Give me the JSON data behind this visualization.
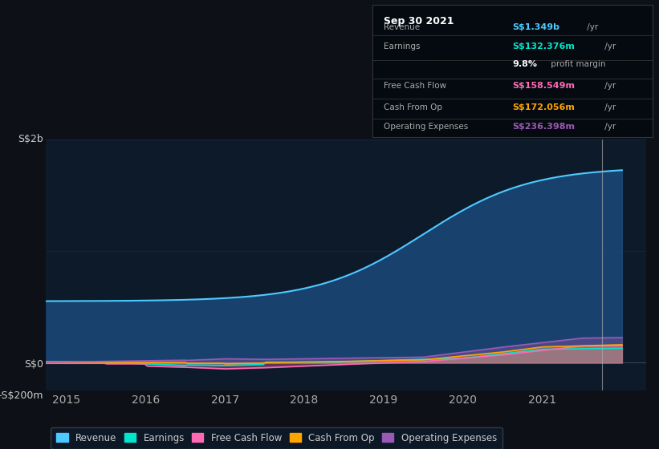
{
  "bg_color": "#0d1117",
  "plot_bg_color": "#0d1a2a",
  "grid_color": "#1e3a5f",
  "title": "Sep 30 2021",
  "ylabel_top": "S$2b",
  "ylabel_zero": "S$0",
  "ylabel_bottom": "-S$200m",
  "xlabel_ticks": [
    "2015",
    "2016",
    "2017",
    "2018",
    "2019",
    "2020",
    "2021"
  ],
  "vertical_line_x": 2021.75,
  "series": {
    "revenue": {
      "color": "#4ec9ff",
      "fill_color": "#1a4a7a",
      "label": "Revenue"
    },
    "earnings": {
      "color": "#00e5cc",
      "fill_color": "#00e5cc",
      "label": "Earnings"
    },
    "free_cash_flow": {
      "color": "#ff69b4",
      "fill_color": "#ff69b4",
      "label": "Free Cash Flow"
    },
    "cash_from_op": {
      "color": "#ffa500",
      "fill_color": "#ffa500",
      "label": "Cash From Op"
    },
    "operating_expenses": {
      "color": "#9b59b6",
      "fill_color": "#9b59b6",
      "label": "Operating Expenses"
    }
  },
  "legend_items": [
    {
      "label": "Revenue",
      "color": "#4ec9ff"
    },
    {
      "label": "Earnings",
      "color": "#00e5cc"
    },
    {
      "label": "Free Cash Flow",
      "color": "#ff69b4"
    },
    {
      "label": "Cash From Op",
      "color": "#ffa500"
    },
    {
      "label": "Operating Expenses",
      "color": "#9b59b6"
    }
  ],
  "info_rows": [
    {
      "label": "Revenue",
      "value": "S$1.349b",
      "unit": " /yr",
      "value_color": "#4ec9ff"
    },
    {
      "label": "Earnings",
      "value": "S$132.376m",
      "unit": " /yr",
      "value_color": "#00e5cc"
    },
    {
      "label": "",
      "value": "9.8%",
      "unit": " profit margin",
      "value_color": "#ffffff"
    },
    {
      "label": "Free Cash Flow",
      "value": "S$158.549m",
      "unit": " /yr",
      "value_color": "#ff69b4"
    },
    {
      "label": "Cash From Op",
      "value": "S$172.056m",
      "unit": " /yr",
      "value_color": "#ffa500"
    },
    {
      "label": "Operating Expenses",
      "value": "S$236.398m",
      "unit": " /yr",
      "value_color": "#9b59b6"
    }
  ]
}
